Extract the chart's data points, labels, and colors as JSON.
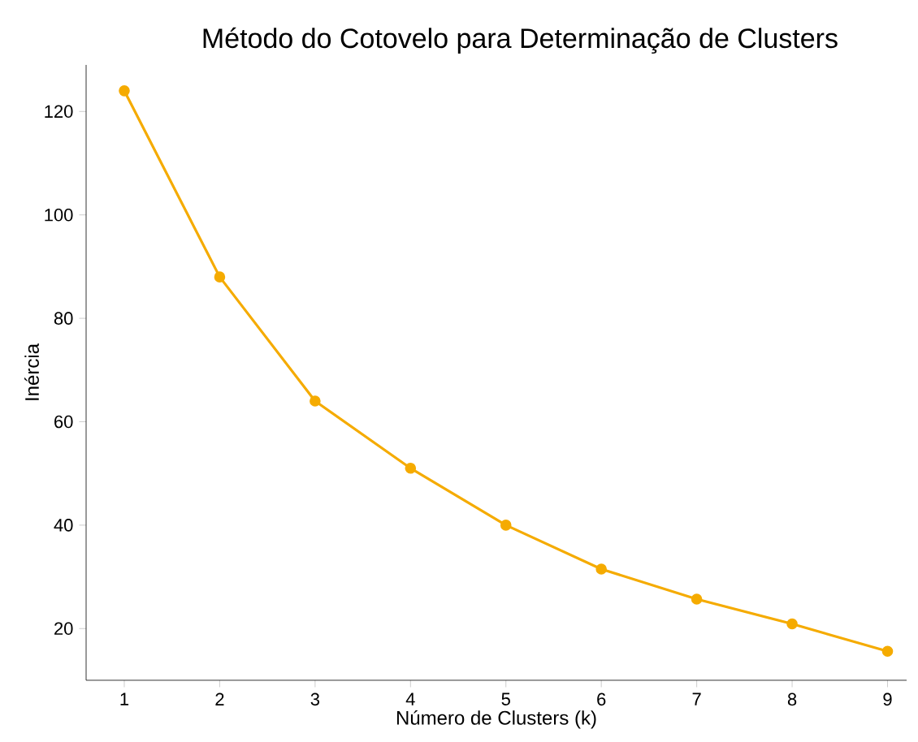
{
  "chart_data": {
    "type": "line",
    "title": "Método do Cotovelo para Determinação de Clusters",
    "xlabel": "Número de Clusters (k)",
    "ylabel": "Inércia",
    "x": [
      1,
      2,
      3,
      4,
      5,
      6,
      7,
      8,
      9
    ],
    "values": [
      124,
      88,
      64,
      51,
      40,
      31.5,
      25.7,
      20.9,
      15.6
    ],
    "color": "#f5ab00",
    "marker": "circle",
    "line_style": "solid",
    "xlim": [
      0.6,
      9.2
    ],
    "ylim": [
      10,
      129
    ],
    "xticks": [
      1,
      2,
      3,
      4,
      5,
      6,
      7,
      8,
      9
    ],
    "yticks": [
      20,
      40,
      60,
      80,
      100,
      120
    ]
  }
}
